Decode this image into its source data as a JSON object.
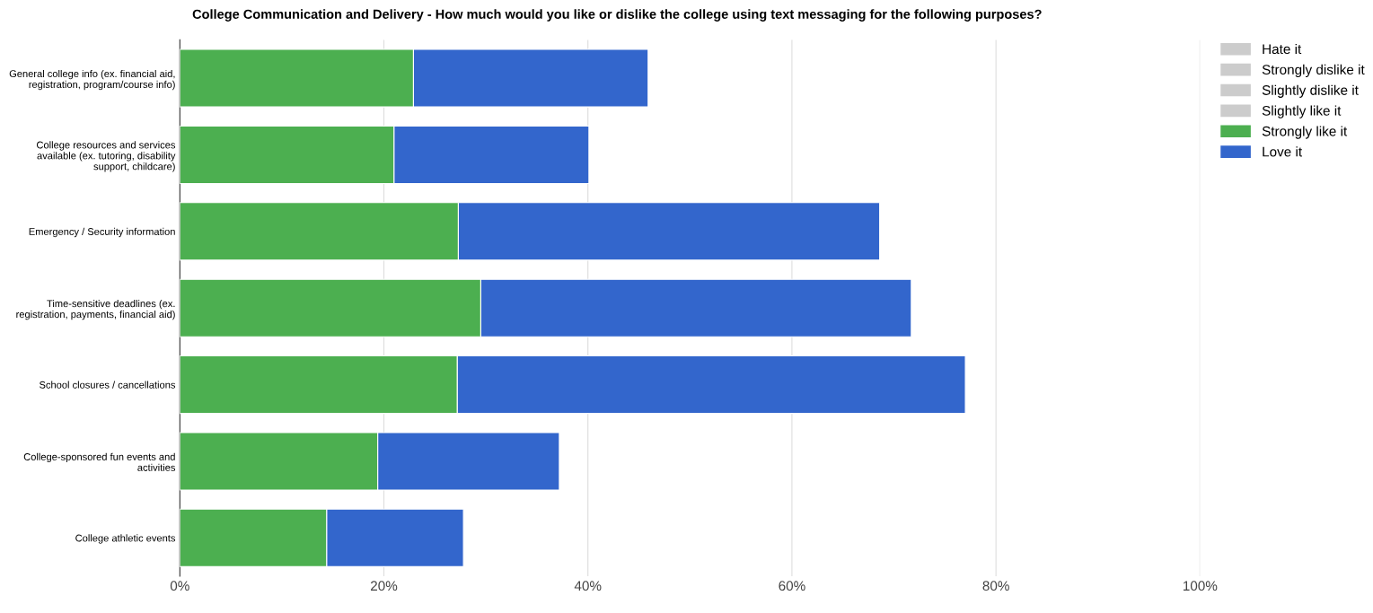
{
  "chart_data": {
    "type": "bar",
    "orientation": "horizontal",
    "stacked": true,
    "title": "College Communication and Delivery - How much would you like or dislike the college using text messaging for the following purposes?",
    "categories": [
      "General college info (ex. financial aid,\nregistration, program/course info)",
      "College resources and services\navailable (ex. tutoring, disability\nsupport, childcare)",
      "Emergency / Security information",
      "Time-sensitive deadlines (ex.\nregistration, payments, financial aid)",
      "School closures / cancellations",
      "College-sponsored fun events and\nactivities",
      "College athletic events"
    ],
    "series": [
      {
        "name": "Hate it",
        "color": "#cccccc",
        "values": [
          null,
          null,
          null,
          null,
          null,
          null,
          null
        ]
      },
      {
        "name": "Strongly dislike it",
        "color": "#cccccc",
        "values": [
          null,
          null,
          null,
          null,
          null,
          null,
          null
        ]
      },
      {
        "name": "Slightly dislike it",
        "color": "#cccccc",
        "values": [
          null,
          null,
          null,
          null,
          null,
          null,
          null
        ]
      },
      {
        "name": "Slightly like it",
        "color": "#cccccc",
        "values": [
          null,
          null,
          null,
          null,
          null,
          null,
          null
        ]
      },
      {
        "name": "Strongly like it",
        "color": "#4caf50",
        "values": [
          22.9,
          21.0,
          27.3,
          29.5,
          27.2,
          19.4,
          14.4
        ]
      },
      {
        "name": "Love it",
        "color": "#3366cc",
        "values": [
          23.0,
          19.1,
          41.3,
          42.2,
          49.8,
          17.8,
          13.4
        ]
      }
    ],
    "xlim": [
      0,
      100
    ],
    "xticks": [
      {
        "value": 0,
        "label": "0%"
      },
      {
        "value": 20,
        "label": "20%"
      },
      {
        "value": 40,
        "label": "40%"
      },
      {
        "value": 60,
        "label": "60%"
      },
      {
        "value": 80,
        "label": "80%"
      },
      {
        "value": 100,
        "label": "100%"
      }
    ],
    "grid": "x",
    "legend": "top right"
  }
}
